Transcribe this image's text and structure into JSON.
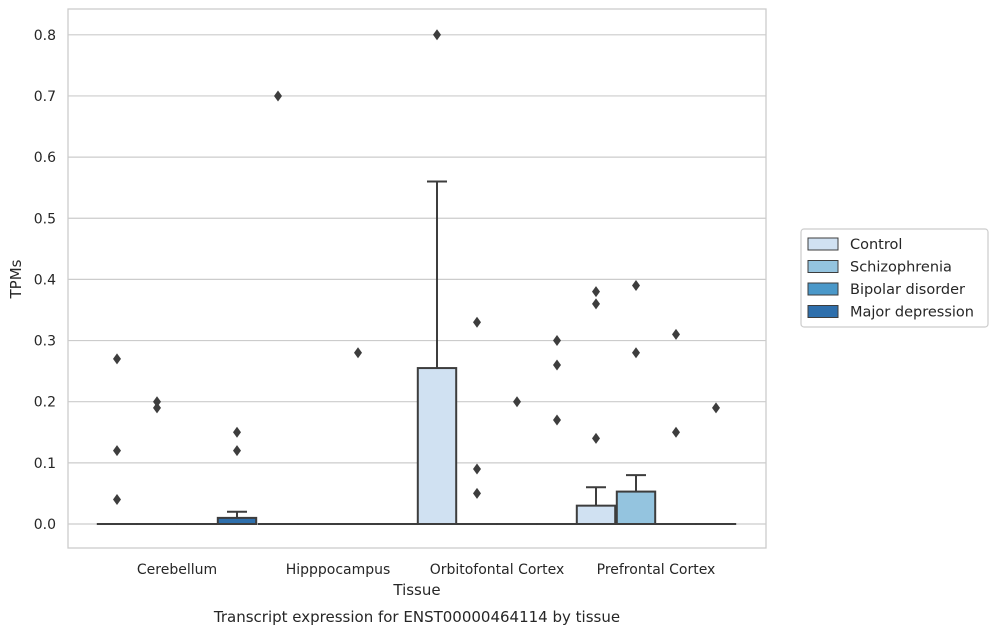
{
  "chart_data": {
    "type": "boxplot",
    "title": "",
    "caption": "Transcript expression for ENST00000464114 by tissue",
    "xlabel": "Tissue",
    "ylabel": "TPMs",
    "ylim": [
      -0.04,
      0.84
    ],
    "yticks": [
      "0.0",
      "0.1",
      "0.2",
      "0.3",
      "0.4",
      "0.5",
      "0.6",
      "0.7",
      "0.8"
    ],
    "ytick_values": [
      0,
      0.1,
      0.2,
      0.3,
      0.4,
      0.5,
      0.6,
      0.7,
      0.8
    ],
    "grid": "horizontal",
    "legend_position": "right",
    "categories": [
      "Cerebellum",
      "Hipppocampus",
      "Orbitofontal Cortex",
      "Prefrontal Cortex"
    ],
    "series": [
      {
        "name": "Control",
        "color": "#d0e1f2",
        "boxes": [
          {
            "q1": 0,
            "median": 0,
            "q3": 0,
            "whisker_low": 0,
            "whisker_high": 0,
            "outliers": [
              0.27,
              0.12,
              0.04
            ]
          },
          {
            "q1": 0,
            "median": 0,
            "q3": 0,
            "whisker_low": 0,
            "whisker_high": 0,
            "outliers": [
              0.7
            ]
          },
          {
            "q1": 0,
            "median": 0,
            "q3": 0.255,
            "whisker_low": 0,
            "whisker_high": 0.56,
            "outliers": [
              0.8
            ]
          },
          {
            "q1": 0,
            "median": 0,
            "q3": 0.03,
            "whisker_low": 0,
            "whisker_high": 0.06,
            "outliers": [
              0.38,
              0.36,
              0.14
            ]
          }
        ]
      },
      {
        "name": "Schizophrenia",
        "color": "#94c4df",
        "boxes": [
          {
            "q1": 0,
            "median": 0,
            "q3": 0,
            "whisker_low": 0,
            "whisker_high": 0,
            "outliers": [
              0.2,
              0.19
            ]
          },
          {
            "q1": 0,
            "median": 0,
            "q3": 0,
            "whisker_low": 0,
            "whisker_high": 0,
            "outliers": []
          },
          {
            "q1": 0,
            "median": 0,
            "q3": 0,
            "whisker_low": 0,
            "whisker_high": 0,
            "outliers": [
              0.33,
              0.09,
              0.05
            ]
          },
          {
            "q1": 0,
            "median": 0,
            "q3": 0.053,
            "whisker_low": 0,
            "whisker_high": 0.08,
            "outliers": [
              0.39,
              0.28
            ]
          }
        ]
      },
      {
        "name": "Bipolar disorder",
        "color": "#4a98c9",
        "boxes": [
          {
            "q1": 0,
            "median": 0,
            "q3": 0,
            "whisker_low": 0,
            "whisker_high": 0,
            "outliers": []
          },
          {
            "q1": 0,
            "median": 0,
            "q3": 0,
            "whisker_low": 0,
            "whisker_high": 0,
            "outliers": [
              0.28
            ]
          },
          {
            "q1": 0,
            "median": 0,
            "q3": 0,
            "whisker_low": 0,
            "whisker_high": 0,
            "outliers": [
              0.2
            ]
          },
          {
            "q1": 0,
            "median": 0,
            "q3": 0,
            "whisker_low": 0,
            "whisker_high": 0,
            "outliers": [
              0.31,
              0.15
            ]
          }
        ]
      },
      {
        "name": "Major depression",
        "color": "#2e6fac",
        "boxes": [
          {
            "q1": 0,
            "median": 0,
            "q3": 0.01,
            "whisker_low": 0,
            "whisker_high": 0.02,
            "outliers": [
              0.15,
              0.12
            ]
          },
          {
            "q1": 0,
            "median": 0,
            "q3": 0,
            "whisker_low": 0,
            "whisker_high": 0,
            "outliers": []
          },
          {
            "q1": 0,
            "median": 0,
            "q3": 0,
            "whisker_low": 0,
            "whisker_high": 0,
            "outliers": [
              0.3,
              0.26,
              0.17
            ]
          },
          {
            "q1": 0,
            "median": 0,
            "q3": 0,
            "whisker_low": 0,
            "whisker_high": 0,
            "outliers": [
              0.19
            ]
          }
        ]
      }
    ]
  }
}
